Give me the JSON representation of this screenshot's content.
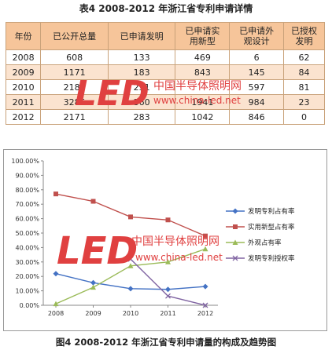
{
  "table_caption": "表4 2008-2012 年浙江省专利申请详情",
  "figure_caption": "图4 2008-2012 年浙江省专利申请量的构成及趋势图",
  "table": {
    "headers": [
      [
        "年份"
      ],
      [
        "已公开总量"
      ],
      [
        "已申请发明"
      ],
      [
        "已申请实",
        "用新型"
      ],
      [
        "已申请外",
        "观设计"
      ],
      [
        "已授权",
        "发明"
      ]
    ],
    "rows": [
      [
        "2008",
        "608",
        "133",
        "469",
        "6",
        "62"
      ],
      [
        "2009",
        "1171",
        "183",
        "843",
        "145",
        "84"
      ],
      [
        "2010",
        "2185",
        "251",
        "",
        "597",
        "81"
      ],
      [
        "2011",
        "3285",
        "360",
        "1941",
        "984",
        "23"
      ],
      [
        "2012",
        "2171",
        "283",
        "1042",
        "846",
        "0"
      ]
    ]
  },
  "watermark": {
    "logo": "LED",
    "site_name": "中国半导体照明网",
    "url": "www.china-led.net"
  },
  "chart_data": {
    "type": "line",
    "x": [
      "2008",
      "2009",
      "2010",
      "2011",
      "2012"
    ],
    "ylim": [
      0,
      100
    ],
    "yticks": [
      "0.00%",
      "10.00%",
      "20.00%",
      "30.00%",
      "40.00%",
      "50.00%",
      "60.00%",
      "70.00%",
      "80.00%",
      "90.00%",
      "100.00%"
    ],
    "grid": false,
    "legend_position": "right",
    "series": [
      {
        "name": "发明专利占有率",
        "values": [
          21.9,
          15.6,
          11.5,
          11.0,
          13.0
        ],
        "color": "#4472c4",
        "marker": "diamond"
      },
      {
        "name": "实用新型占有率",
        "values": [
          77.1,
          72.0,
          61.2,
          59.1,
          48.0
        ],
        "color": "#c0504d",
        "marker": "square"
      },
      {
        "name": "外观占有率",
        "values": [
          1.0,
          12.4,
          27.3,
          30.0,
          39.0
        ],
        "color": "#9bbb59",
        "marker": "triangle"
      },
      {
        "name": "发明专利授权率",
        "values": [
          null,
          null,
          32.0,
          6.4,
          0.0
        ],
        "color": "#8064a2",
        "marker": "x"
      }
    ]
  }
}
